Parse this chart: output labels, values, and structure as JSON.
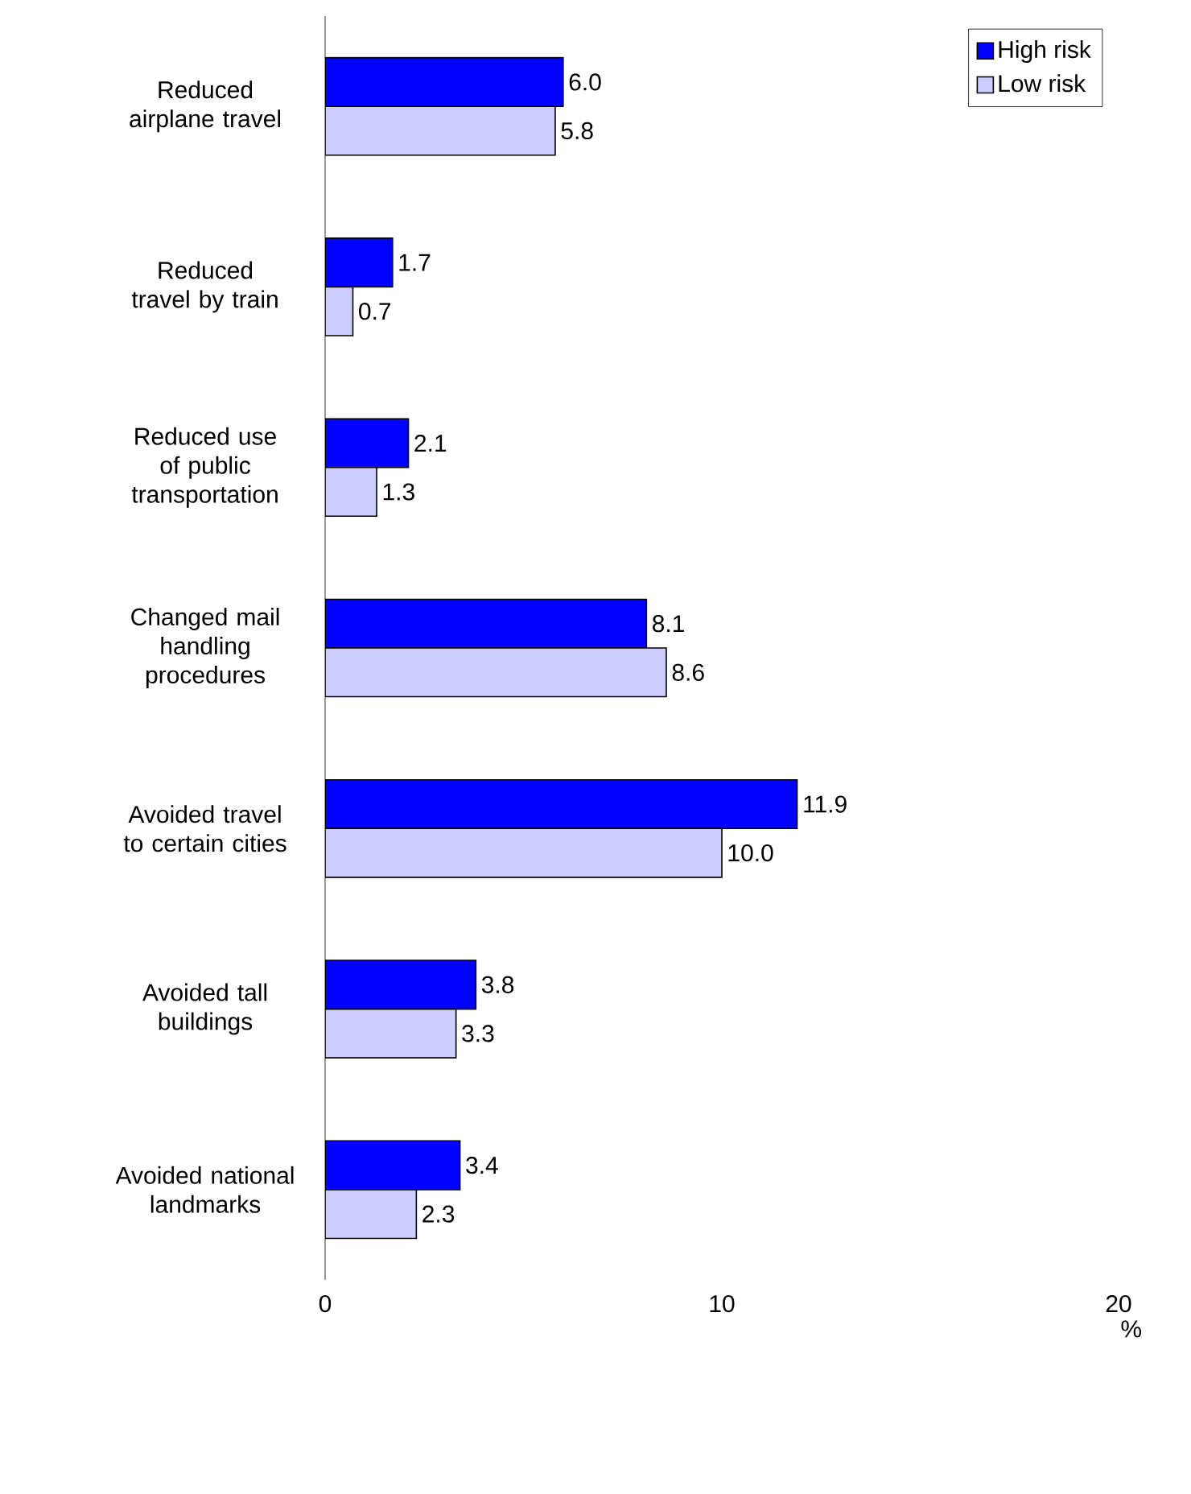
{
  "chart_data": {
    "type": "bar",
    "orientation": "horizontal",
    "xlabel": "%",
    "categories": [
      "Reduced airplane travel",
      "Reduced travel by train",
      "Reduced use of public transportation",
      "Changed mail handling procedures",
      "Avoided travel to certain cities",
      "Avoided tall buildings",
      "Avoided national landmarks"
    ],
    "series": [
      {
        "name": "High risk",
        "color": "#0000ff",
        "values": [
          6.0,
          1.7,
          2.1,
          8.1,
          11.9,
          3.8,
          3.4
        ],
        "value_labels": [
          "6.0",
          "1.7",
          "2.1",
          "8.1",
          "11.9",
          "3.8",
          "3.4"
        ]
      },
      {
        "name": "Low risk",
        "color": "#ccccff",
        "values": [
          5.8,
          0.7,
          1.3,
          8.6,
          10.0,
          3.3,
          2.3
        ],
        "value_labels": [
          "5.8",
          "0.7",
          "1.3",
          "8.6",
          "10.0",
          "3.3",
          "2.3"
        ]
      }
    ],
    "xlim": [
      0,
      20
    ],
    "xticks": [
      0,
      10,
      20
    ],
    "legend": "top right"
  }
}
